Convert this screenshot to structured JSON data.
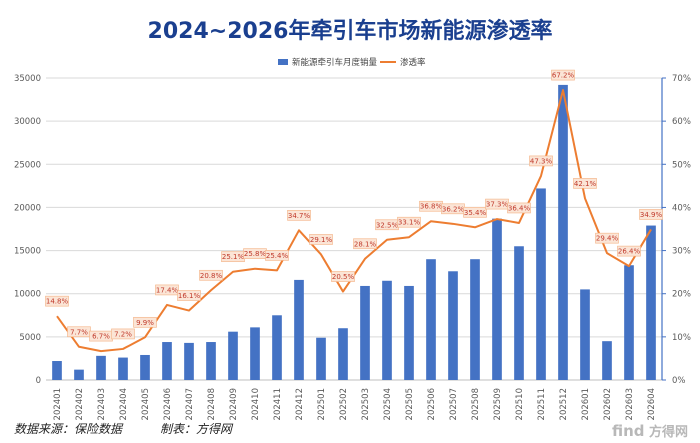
{
  "colors": {
    "bar": "#4472c4",
    "line": "#ed7d31",
    "title": "#1a3f8f",
    "label_bg": "#fbe5d6",
    "label_border": "#f4b183",
    "label_text": "#c0392b",
    "grid": "#d9d9d9",
    "right_axis": "#4472c4"
  },
  "footer": {
    "source": "数据来源：保险数据",
    "author": "制表：方得网"
  },
  "watermark": {
    "brand": "find",
    "suffix": "方得网"
  },
  "chart_data": {
    "type": "bar",
    "title": "2024~2026年牵引车市场新能源渗透率",
    "legend_position": "top",
    "grid": true,
    "categories": [
      "202401",
      "202402",
      "202403",
      "202404",
      "202405",
      "202406",
      "202407",
      "202408",
      "202409",
      "202410",
      "202411",
      "202412",
      "202501",
      "202502",
      "202503",
      "202504",
      "202505",
      "202506",
      "202507",
      "202508",
      "202509",
      "202510",
      "202511",
      "202512",
      "202601",
      "202602",
      "202603",
      "202604"
    ],
    "series": [
      {
        "name": "新能源牵引车月度销量",
        "type": "bar",
        "axis": "left",
        "values": [
          2200,
          1200,
          2800,
          2600,
          2900,
          4400,
          4300,
          4400,
          5600,
          6100,
          7500,
          11600,
          4900,
          6000,
          10900,
          11500,
          10900,
          14000,
          12600,
          14000,
          18700,
          15500,
          22200,
          34200,
          10500,
          4500,
          13300,
          17900
        ]
      },
      {
        "name": "渗透率",
        "type": "line",
        "axis": "right",
        "values": [
          14.8,
          7.7,
          6.7,
          7.2,
          9.9,
          17.4,
          16.1,
          20.8,
          25.1,
          25.8,
          25.4,
          34.7,
          29.1,
          20.5,
          28.1,
          32.5,
          33.1,
          36.8,
          36.2,
          35.4,
          37.3,
          36.4,
          47.3,
          67.2,
          42.1,
          29.4,
          26.4,
          34.9
        ],
        "labels": [
          "14.8%",
          "7.7%",
          "6.7%",
          "7.2%",
          "9.9%",
          "17.4%",
          "16.1%",
          "20.8%",
          "25.1%",
          "25.8%",
          "25.4%",
          "34.7%",
          "29.1%",
          "20.5%",
          "28.1%",
          "32.5%",
          "33.1%",
          "36.8%",
          "36.2%",
          "35.4%",
          "37.3%",
          "36.4%",
          "47.3%",
          "67.2%",
          "42.1%",
          "29.4%",
          "26.4%",
          "34.9%"
        ]
      }
    ],
    "y_left": {
      "min": 0,
      "max": 35000,
      "ticks": [
        "0",
        "5000",
        "10000",
        "15000",
        "20000",
        "25000",
        "30000",
        "35000"
      ]
    },
    "y_right": {
      "min": 0,
      "max": 70,
      "ticks": [
        "0%",
        "10%",
        "20%",
        "30%",
        "40%",
        "50%",
        "60%",
        "70%"
      ]
    }
  }
}
